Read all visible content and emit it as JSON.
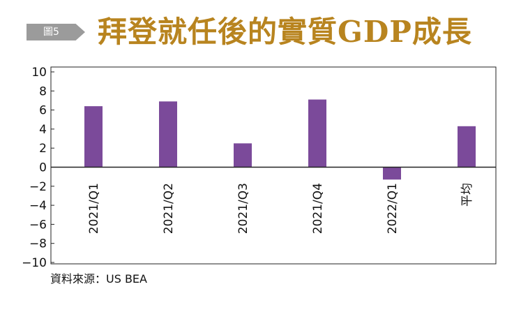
{
  "figure_tag": "圖5",
  "title": "拜登就任後的實質GDP成長",
  "source": "資料來源：US BEA",
  "chart_data": {
    "type": "bar",
    "categories": [
      "2021/Q1",
      "2021/Q2",
      "2021/Q3",
      "2021/Q4",
      "2022/Q1",
      "平均"
    ],
    "values": [
      6.4,
      6.9,
      2.5,
      7.1,
      -1.3,
      4.3
    ],
    "ylim": [
      -10,
      10
    ],
    "yticks": [
      10,
      8,
      6,
      4,
      2,
      0,
      -2,
      -4,
      -6,
      -8,
      -10
    ],
    "grid": false,
    "bar_color": "#7b4a9a",
    "xlabel": "",
    "ylabel": ""
  }
}
